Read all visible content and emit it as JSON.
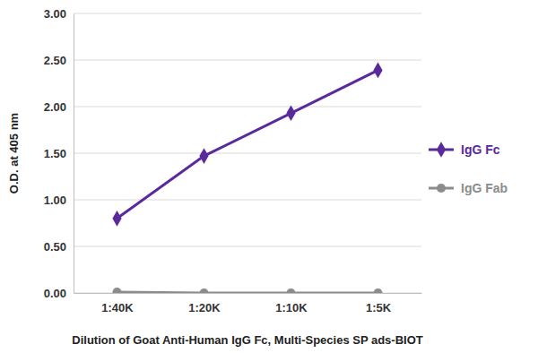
{
  "chart_data": {
    "type": "line",
    "x_label": "Dilution of Goat Anti-Human IgG Fc, Multi-Species SP ads-BIOT",
    "y_label": "O.D. at 405 nm",
    "categories": [
      "1:40K",
      "1:20K",
      "1:10K",
      "1:5K"
    ],
    "series": [
      {
        "name": "IgG Fc",
        "color": "#5a2a9d",
        "marker": "diamond",
        "values": [
          0.8,
          1.47,
          1.93,
          2.39
        ]
      },
      {
        "name": "IgG Fab",
        "color": "#8c8c8c",
        "marker": "circle",
        "values": [
          0.01,
          0.0,
          0.0,
          0.0
        ]
      }
    ],
    "ylim": [
      0,
      3
    ],
    "yticks": [
      {
        "value": 0,
        "label": "0.00"
      },
      {
        "value": 0.5,
        "label": "0.50"
      },
      {
        "value": 1,
        "label": "1.00"
      },
      {
        "value": 1.5,
        "label": "1.50"
      },
      {
        "value": 2,
        "label": "2.00"
      },
      {
        "value": 2.5,
        "label": "2.50"
      },
      {
        "value": 3,
        "label": "3.00"
      }
    ],
    "grid": true,
    "legend": "right"
  }
}
